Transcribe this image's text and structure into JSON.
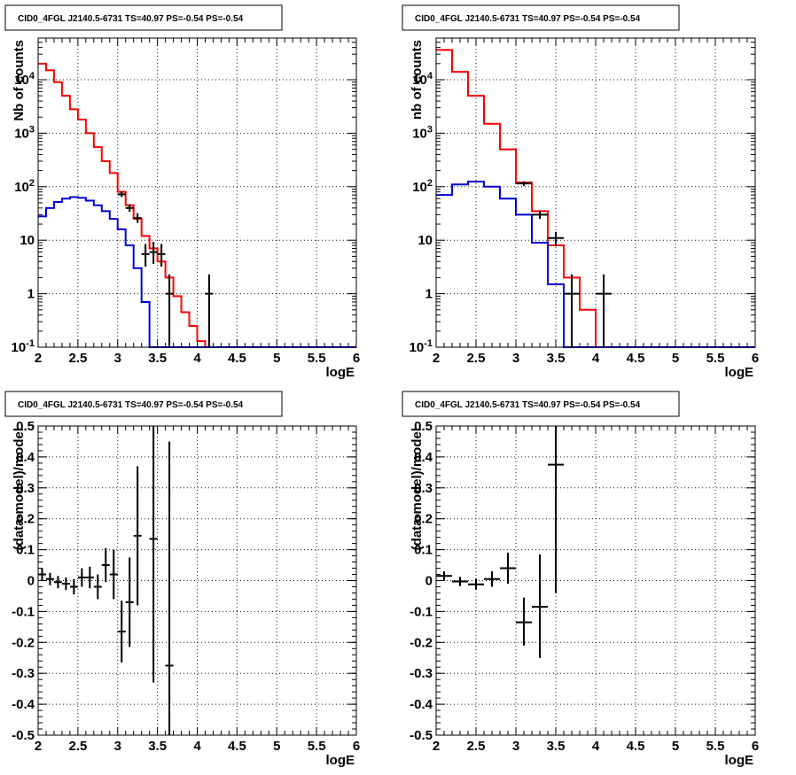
{
  "chart_data": [
    {
      "type": "line",
      "title": "CID0_4FGL J2140.5-6731 TS=40.97 PS=-0.54 PS=-0.54",
      "xlabel": "logE",
      "ylabel": "Nb of counts",
      "xlim": [
        2,
        6
      ],
      "ylim": [
        0.1,
        60000
      ],
      "yscale": "log",
      "grid": true,
      "x_ticks": [
        "2",
        "2.5",
        "3",
        "3.5",
        "4",
        "4.5",
        "5",
        "5.5",
        "6"
      ],
      "y_ticks": [
        "10^-1",
        "1",
        "10",
        "10^2",
        "10^3",
        "10^4"
      ],
      "bin_edges": [
        2.0,
        2.1,
        2.2,
        2.3,
        2.4,
        2.5,
        2.6,
        2.7,
        2.8,
        2.9,
        3.0,
        3.1,
        3.2,
        3.3,
        3.4,
        3.5,
        3.6,
        3.7,
        3.8,
        3.9,
        4.0,
        4.1,
        4.2,
        4.3,
        4.4,
        4.5,
        4.6,
        4.7,
        4.8,
        4.9,
        5.0,
        5.1,
        5.2,
        5.3,
        5.4,
        5.5,
        5.6,
        5.7,
        5.8,
        5.9,
        6.0
      ],
      "series": [
        {
          "style": "step",
          "color": "#ff0000",
          "values": [
            20000,
            15000,
            9000,
            5000,
            2800,
            1800,
            1000,
            550,
            300,
            180,
            80,
            45,
            25,
            12,
            7,
            4,
            2,
            0.9,
            0.45,
            0.25,
            0.13,
            0.1,
            0.1,
            0.1,
            0.1,
            0.1,
            0.1,
            0.1,
            0.1,
            0.1,
            0.1,
            0.1,
            0.1,
            0.1,
            0.1,
            0.1,
            0.1,
            0.1,
            0.1,
            0.1
          ]
        },
        {
          "style": "step",
          "color": "#0000dd",
          "values": [
            28,
            40,
            52,
            60,
            64,
            62,
            55,
            45,
            35,
            25,
            16,
            8,
            3,
            0.7,
            0.1,
            0.1,
            0.1,
            0.1,
            0.1,
            0.1,
            0.1,
            0.1,
            0.1,
            0.1,
            0.1,
            0.1,
            0.1,
            0.1,
            0.1,
            0.1,
            0.1,
            0.1,
            0.1,
            0.1,
            0.1,
            0.1,
            0.1,
            0.1,
            0.1,
            0.1
          ]
        },
        {
          "style": "errorbar",
          "color": "#000000",
          "points": [
            {
              "x": 3.05,
              "y": 72,
              "lo": 64,
              "hi": 81,
              "xerr": 0.05
            },
            {
              "x": 3.15,
              "y": 40,
              "lo": 34,
              "hi": 47,
              "xerr": 0.05
            },
            {
              "x": 3.25,
              "y": 26,
              "lo": 21,
              "hi": 32,
              "xerr": 0.05
            },
            {
              "x": 3.35,
              "y": 5.5,
              "lo": 3.2,
              "hi": 8.5,
              "xerr": 0.05
            },
            {
              "x": 3.45,
              "y": 6,
              "lo": 3.6,
              "hi": 9.3,
              "xerr": 0.05
            },
            {
              "x": 3.55,
              "y": 5.5,
              "lo": 3.2,
              "hi": 8.5,
              "xerr": 0.05
            },
            {
              "x": 3.65,
              "y": 1,
              "lo": 0.1,
              "hi": 2.3,
              "xerr": 0.05
            },
            {
              "x": 4.15,
              "y": 1,
              "lo": 0.1,
              "hi": 2.3,
              "xerr": 0.05
            }
          ]
        }
      ]
    },
    {
      "type": "line",
      "title": "CID0_4FGL J2140.5-6731 TS=40.97 PS=-0.54 PS=-0.54",
      "xlabel": "logE",
      "ylabel": "nb of counts",
      "xlim": [
        2,
        6
      ],
      "ylim": [
        0.1,
        60000
      ],
      "yscale": "log",
      "grid": true,
      "x_ticks": [
        "2",
        "2.5",
        "3",
        "3.5",
        "4",
        "4.5",
        "5",
        "5.5",
        "6"
      ],
      "y_ticks": [
        "10^-1",
        "1",
        "10",
        "10^2",
        "10^3",
        "10^4"
      ],
      "bin_edges": [
        2.0,
        2.2,
        2.4,
        2.6,
        2.8,
        3.0,
        3.2,
        3.4,
        3.6,
        3.8,
        4.0,
        4.2,
        4.4,
        4.6,
        4.8,
        5.0,
        5.2,
        5.4,
        5.6,
        5.8,
        6.0
      ],
      "series": [
        {
          "style": "step",
          "color": "#ff0000",
          "values": [
            36000,
            14000,
            5000,
            1500,
            500,
            120,
            35,
            8,
            2,
            0.5,
            0.1,
            0.1,
            0.1,
            0.1,
            0.1,
            0.1,
            0.1,
            0.1,
            0.1,
            0.1
          ]
        },
        {
          "style": "step",
          "color": "#0000dd",
          "values": [
            70,
            110,
            125,
            100,
            60,
            30,
            9,
            1.5,
            0.1,
            0.1,
            0.1,
            0.1,
            0.1,
            0.1,
            0.1,
            0.1,
            0.1,
            0.1,
            0.1,
            0.1
          ]
        },
        {
          "style": "errorbar",
          "color": "#000000",
          "points": [
            {
              "x": 3.1,
              "y": 115,
              "lo": 104,
              "hi": 126,
              "xerr": 0.1
            },
            {
              "x": 3.3,
              "y": 30,
              "lo": 25,
              "hi": 36,
              "xerr": 0.1
            },
            {
              "x": 3.5,
              "y": 11,
              "lo": 7.7,
              "hi": 14.3,
              "xerr": 0.1
            },
            {
              "x": 3.7,
              "y": 1,
              "lo": 0.1,
              "hi": 2.3,
              "xerr": 0.1
            },
            {
              "x": 4.1,
              "y": 1,
              "lo": 0.1,
              "hi": 2.3,
              "xerr": 0.1
            }
          ]
        }
      ]
    },
    {
      "type": "scatter",
      "title": "CID0_4FGL J2140.5-6731 TS=40.97 PS=-0.54 PS=-0.54",
      "xlabel": "logE",
      "ylabel": "(data-model)/model",
      "xlim": [
        2,
        6
      ],
      "ylim": [
        -0.5,
        0.5
      ],
      "grid": true,
      "x_ticks": [
        "2",
        "2.5",
        "3",
        "3.5",
        "4",
        "4.5",
        "5",
        "5.5",
        "6"
      ],
      "y_ticks": [
        "-0.5",
        "-0.4",
        "-0.3",
        "-0.2",
        "-0.1",
        "0",
        "0.1",
        "0.2",
        "0.3",
        "0.4",
        "0.5"
      ],
      "series": [
        {
          "style": "errorbar",
          "color": "#000000",
          "points": [
            {
              "x": 2.05,
              "y": 0.02,
              "lo": 0.0,
              "hi": 0.04,
              "xerr": 0.05
            },
            {
              "x": 2.15,
              "y": 0.005,
              "lo": -0.015,
              "hi": 0.025,
              "xerr": 0.05
            },
            {
              "x": 2.25,
              "y": -0.005,
              "lo": -0.025,
              "hi": 0.015,
              "xerr": 0.05
            },
            {
              "x": 2.35,
              "y": -0.01,
              "lo": -0.03,
              "hi": 0.01,
              "xerr": 0.05
            },
            {
              "x": 2.45,
              "y": -0.02,
              "lo": -0.045,
              "hi": 0.005,
              "xerr": 0.05
            },
            {
              "x": 2.55,
              "y": 0.01,
              "lo": -0.02,
              "hi": 0.04,
              "xerr": 0.05
            },
            {
              "x": 2.65,
              "y": 0.01,
              "lo": -0.025,
              "hi": 0.045,
              "xerr": 0.05
            },
            {
              "x": 2.75,
              "y": -0.02,
              "lo": -0.06,
              "hi": 0.02,
              "xerr": 0.05
            },
            {
              "x": 2.85,
              "y": 0.05,
              "lo": -0.005,
              "hi": 0.105,
              "xerr": 0.05
            },
            {
              "x": 2.95,
              "y": 0.02,
              "lo": -0.06,
              "hi": 0.1,
              "xerr": 0.05
            },
            {
              "x": 3.05,
              "y": -0.165,
              "lo": -0.265,
              "hi": -0.065,
              "xerr": 0.05
            },
            {
              "x": 3.15,
              "y": -0.07,
              "lo": -0.215,
              "hi": 0.075,
              "xerr": 0.05
            },
            {
              "x": 3.25,
              "y": 0.145,
              "lo": -0.08,
              "hi": 0.37,
              "xerr": 0.05
            },
            {
              "x": 3.45,
              "y": 0.135,
              "lo": -0.33,
              "hi": 0.5,
              "xerr": 0.05
            },
            {
              "x": 3.65,
              "y": -0.275,
              "lo": -0.5,
              "hi": 0.45,
              "xerr": 0.05
            }
          ]
        }
      ]
    },
    {
      "type": "scatter",
      "title": "CID0_4FGL J2140.5-6731 TS=40.97 PS=-0.54 PS=-0.54",
      "xlabel": "logE",
      "ylabel": "(data-model)/model",
      "xlim": [
        2,
        6
      ],
      "ylim": [
        -0.5,
        0.5
      ],
      "grid": true,
      "x_ticks": [
        "2",
        "2.5",
        "3",
        "3.5",
        "4",
        "4.5",
        "5",
        "5.5",
        "6"
      ],
      "y_ticks": [
        "-0.5",
        "-0.4",
        "-0.3",
        "-0.2",
        "-0.1",
        "0",
        "0.1",
        "0.2",
        "0.3",
        "0.4",
        "0.5"
      ],
      "series": [
        {
          "style": "errorbar",
          "color": "#000000",
          "points": [
            {
              "x": 2.1,
              "y": 0.015,
              "lo": 0.0,
              "hi": 0.03,
              "xerr": 0.1
            },
            {
              "x": 2.3,
              "y": -0.003,
              "lo": -0.018,
              "hi": 0.012,
              "xerr": 0.1
            },
            {
              "x": 2.5,
              "y": -0.012,
              "lo": -0.03,
              "hi": 0.006,
              "xerr": 0.1
            },
            {
              "x": 2.7,
              "y": 0.005,
              "lo": -0.02,
              "hi": 0.03,
              "xerr": 0.1
            },
            {
              "x": 2.9,
              "y": 0.04,
              "lo": -0.01,
              "hi": 0.09,
              "xerr": 0.1
            },
            {
              "x": 3.1,
              "y": -0.135,
              "lo": -0.21,
              "hi": -0.055,
              "xerr": 0.1
            },
            {
              "x": 3.3,
              "y": -0.085,
              "lo": -0.25,
              "hi": 0.085,
              "xerr": 0.1
            },
            {
              "x": 3.5,
              "y": 0.375,
              "lo": -0.04,
              "hi": 0.5,
              "xerr": 0.1
            }
          ]
        }
      ]
    }
  ]
}
